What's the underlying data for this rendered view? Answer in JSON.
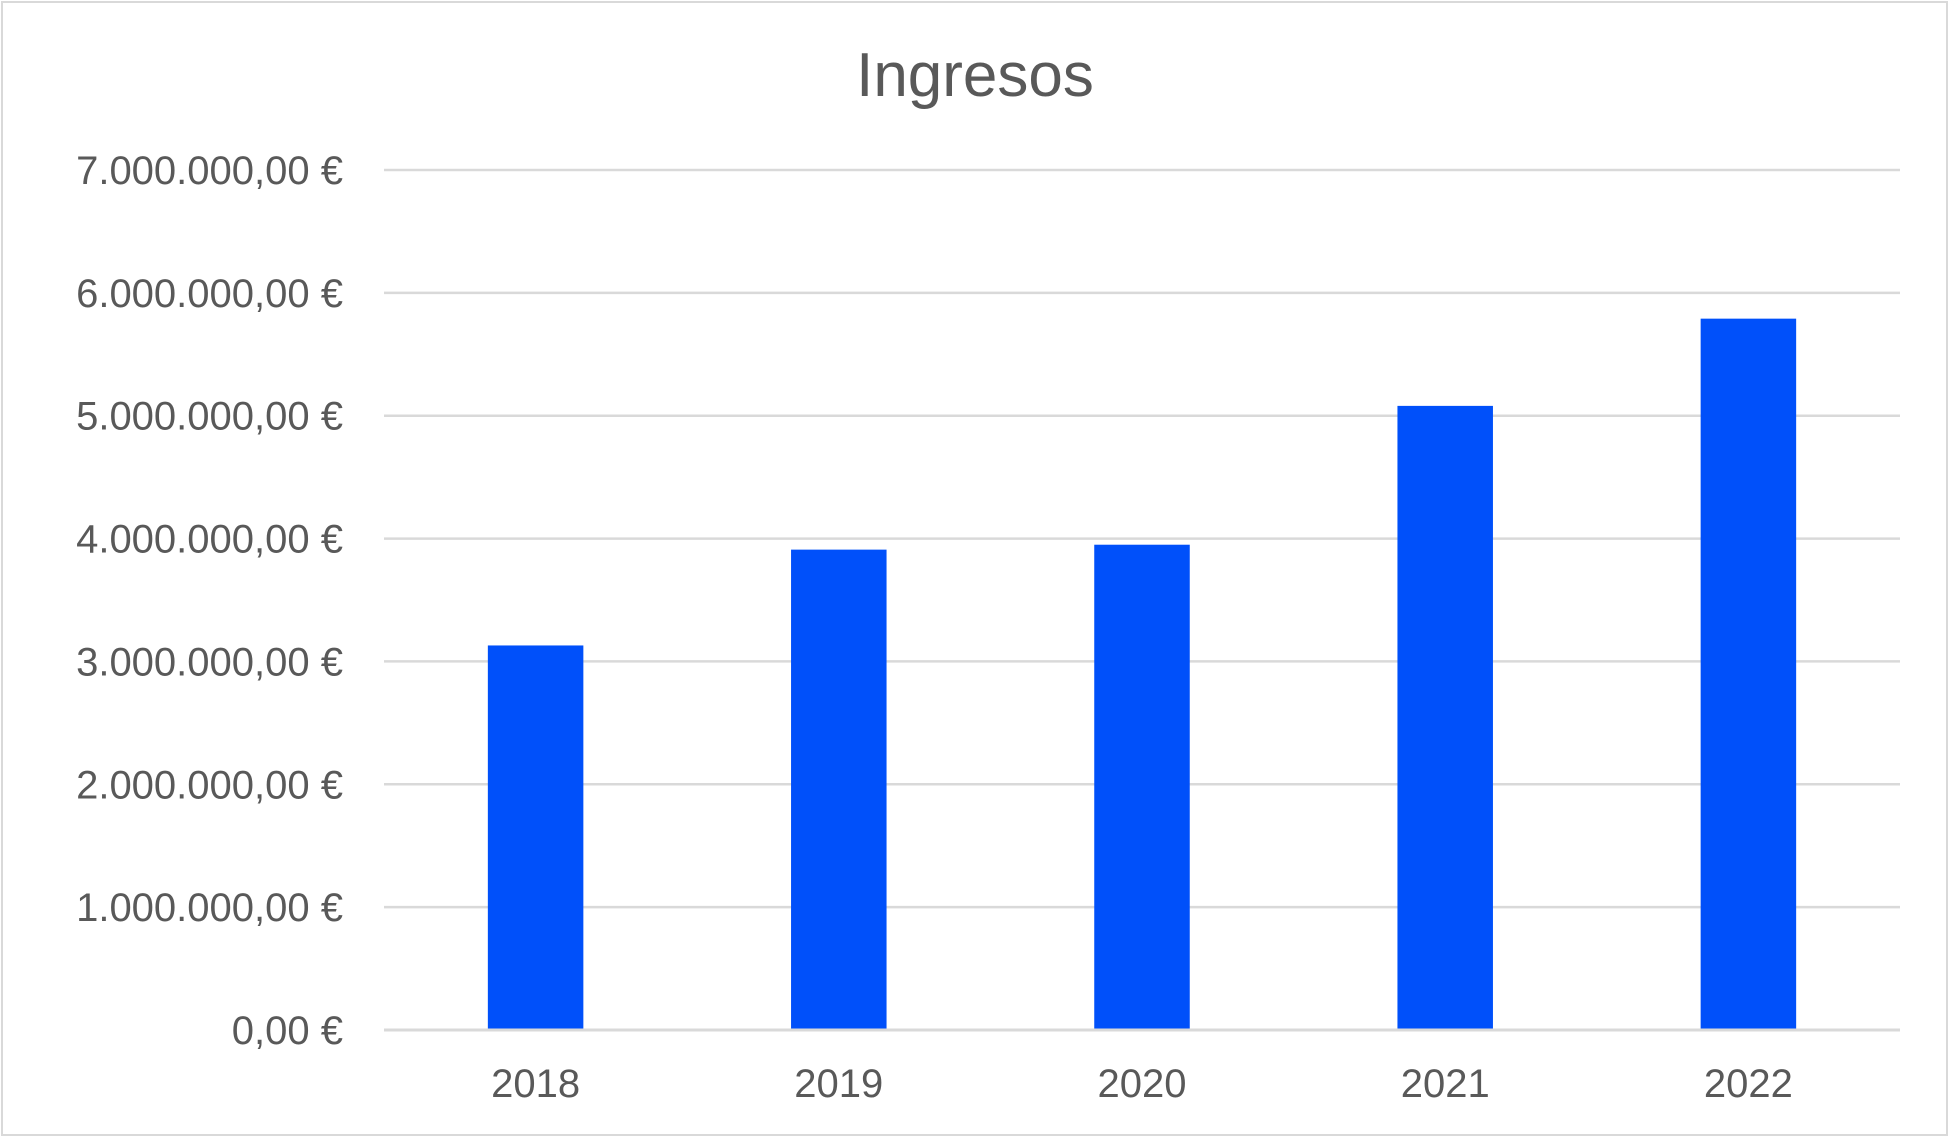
{
  "chart_data": {
    "type": "bar",
    "title": "Ingresos",
    "xlabel": "",
    "ylabel": "",
    "categories": [
      "2018",
      "2019",
      "2020",
      "2021",
      "2022"
    ],
    "values": [
      3130000,
      3910000,
      3950000,
      5080000,
      5790000
    ],
    "ylim": [
      0,
      7000000
    ],
    "yticks": [
      0,
      1000000,
      2000000,
      3000000,
      4000000,
      5000000,
      6000000,
      7000000
    ],
    "ytick_labels": [
      "0,00 €",
      "1.000.000,00 €",
      "2.000.000,00 €",
      "3.000.000,00 €",
      "4.000.000,00 €",
      "5.000.000,00 €",
      "6.000.000,00 €",
      "7.000.000,00 €"
    ],
    "grid": true,
    "legend": "none",
    "bar_color": "#0050FA"
  }
}
